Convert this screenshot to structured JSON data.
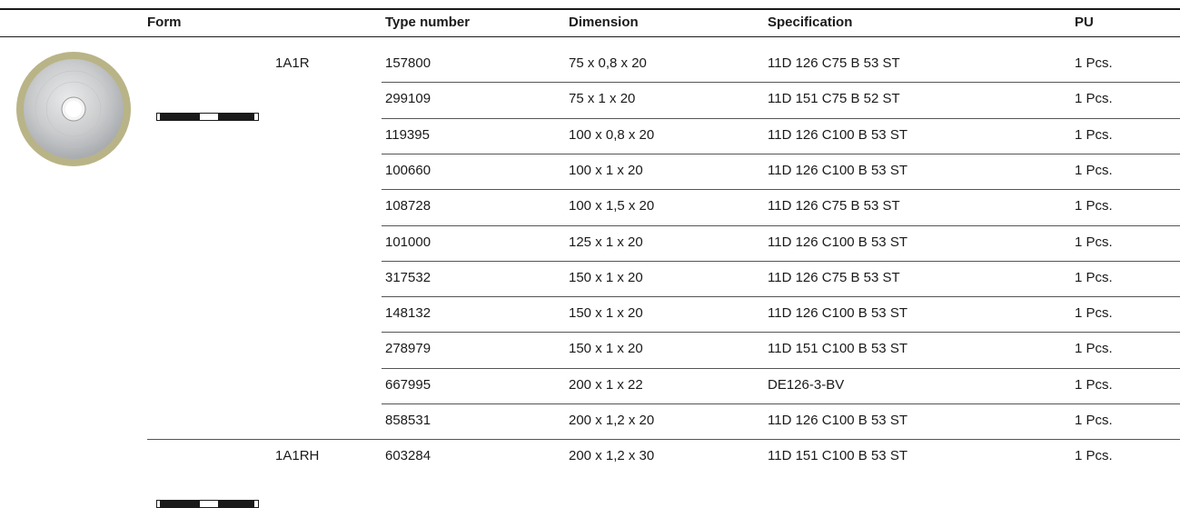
{
  "headers": {
    "form": "Form",
    "type_number": "Type number",
    "dimension": "Dimension",
    "specification": "Specification",
    "pu": "PU"
  },
  "forms": [
    {
      "name": "1A1R"
    },
    {
      "name": "1A1RH"
    }
  ],
  "rows": [
    {
      "type_number": "157800",
      "dimension": "75 x 0,8 x 20",
      "specification": "11D 126 C75 B 53 ST",
      "pu": "1 Pcs."
    },
    {
      "type_number": "299109",
      "dimension": "75 x 1 x 20",
      "specification": "11D 151 C75 B 52 ST",
      "pu": "1 Pcs."
    },
    {
      "type_number": "119395",
      "dimension": "100 x 0,8 x 20",
      "specification": "11D 126 C100 B 53 ST",
      "pu": "1 Pcs."
    },
    {
      "type_number": "100660",
      "dimension": "100 x 1 x 20",
      "specification": "11D 126 C100 B 53 ST",
      "pu": "1 Pcs."
    },
    {
      "type_number": "108728",
      "dimension": "100 x 1,5 x 20",
      "specification": "11D 126 C75 B 53 ST",
      "pu": "1 Pcs."
    },
    {
      "type_number": "101000",
      "dimension": "125 x 1 x 20",
      "specification": "11D 126 C100 B 53 ST",
      "pu": "1 Pcs."
    },
    {
      "type_number": "317532",
      "dimension": "150 x 1 x 20",
      "specification": "11D 126 C75 B 53 ST",
      "pu": "1 Pcs."
    },
    {
      "type_number": "148132",
      "dimension": "150 x 1 x 20",
      "specification": "11D 126 C100 B 53 ST",
      "pu": "1 Pcs."
    },
    {
      "type_number": "278979",
      "dimension": "150 x 1 x 20",
      "specification": "11D 151 C100 B 53 ST",
      "pu": "1 Pcs."
    },
    {
      "type_number": "667995",
      "dimension": "200 x 1 x 22",
      "specification": "DE126-3-BV",
      "pu": "1 Pcs."
    },
    {
      "type_number": "858531",
      "dimension": "200 x 1,2 x 20",
      "specification": "11D 126 C100 B 53 ST",
      "pu": "1 Pcs."
    },
    {
      "type_number": "603284",
      "dimension": "200 x 1,2 x 30",
      "specification": "11D 151 C100 B 53 ST",
      "pu": "1 Pcs."
    }
  ],
  "colors": {
    "rule": "#1a1a1a",
    "row_line": "#555555",
    "disc_rim": "#b9b487"
  }
}
